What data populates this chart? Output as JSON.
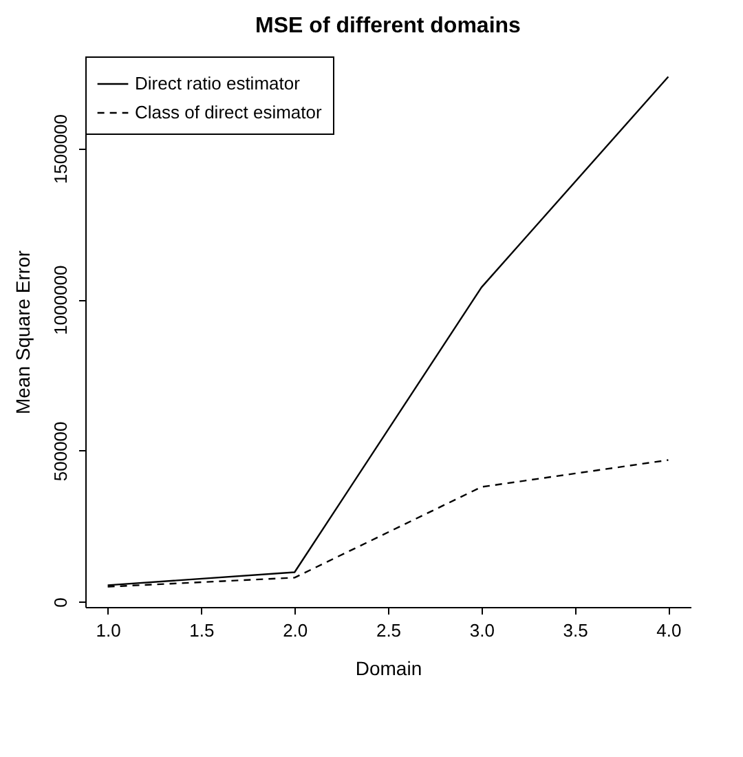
{
  "chart_data": {
    "type": "line",
    "title": "MSE of different domains",
    "xlabel": "Domain",
    "ylabel": "Mean Square Error",
    "x": [
      1,
      2,
      3,
      4
    ],
    "series": [
      {
        "name": "Direct ratio estimator",
        "color": "#000000",
        "line_style": "solid",
        "values": [
          55000,
          98000,
          1040000,
          1737000
        ]
      },
      {
        "name": "Class of direct esimator",
        "color": "#000000",
        "line_style": "dashed",
        "values": [
          50000,
          80000,
          380000,
          469000
        ]
      }
    ],
    "xlim": [
      0.88,
      4.12
    ],
    "ylim": [
      -17000,
      1804000
    ],
    "xticks": [
      {
        "value": 1,
        "label": "1.0"
      },
      {
        "value": 1.5,
        "label": "1.5"
      },
      {
        "value": 2,
        "label": "2.0"
      },
      {
        "value": 2.5,
        "label": "2.5"
      },
      {
        "value": 3,
        "label": "3.0"
      },
      {
        "value": 3.5,
        "label": "3.5"
      },
      {
        "value": 4,
        "label": "4.0"
      }
    ],
    "yticks": [
      0,
      500000,
      1000000,
      1500000
    ],
    "grid": false,
    "legend": "top left",
    "marker": "none"
  }
}
